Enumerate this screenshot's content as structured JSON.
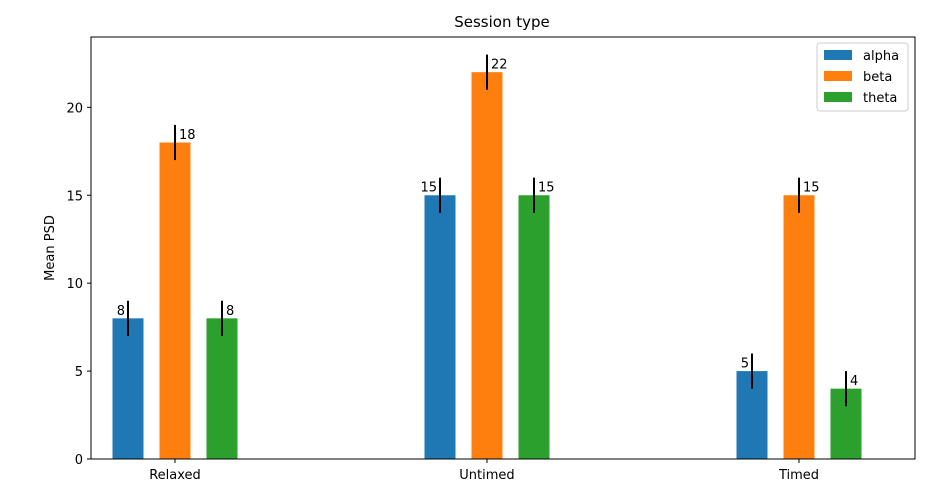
{
  "chart_data": {
    "type": "bar",
    "title": "Session type",
    "xlabel": "",
    "ylabel": "Mean PSD",
    "categories": [
      "Relaxed",
      "Untimed",
      "Timed"
    ],
    "ylim": [
      0,
      24
    ],
    "yticks": [
      0,
      5,
      10,
      15,
      20
    ],
    "series": [
      {
        "name": "alpha",
        "color": "#1f77b4",
        "values": [
          8,
          15,
          5
        ],
        "errors": [
          1,
          1,
          1
        ],
        "label_side": "left"
      },
      {
        "name": "beta",
        "color": "#ff7f0e",
        "values": [
          18,
          22,
          15
        ],
        "errors": [
          1,
          1,
          1
        ],
        "label_side": "right"
      },
      {
        "name": "theta",
        "color": "#2ca02c",
        "values": [
          8,
          15,
          4
        ],
        "errors": [
          1,
          1,
          1
        ],
        "label_side": "right"
      }
    ],
    "grid": false,
    "legend_position": "upper right"
  }
}
